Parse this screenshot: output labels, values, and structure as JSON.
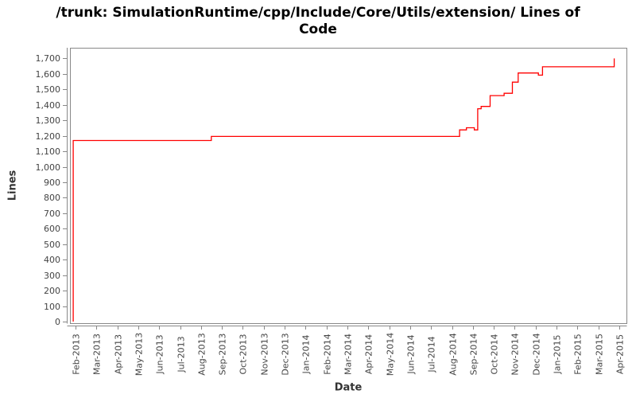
{
  "title": "/trunk: SimulationRuntime/cpp/Include/Core/Utils/extension/ Lines of Code",
  "title_lines": [
    "/trunk: SimulationRuntime/cpp/Include/Core/Utils/extension/ Lines of",
    "Code"
  ],
  "colors": {
    "series": "#ff0000",
    "axis": "#888888",
    "frame": "#888888",
    "tick_label": "#444444",
    "title": "#000000",
    "background": "#ffffff"
  },
  "chart_data": {
    "type": "line",
    "line_style": "step-after",
    "title": "/trunk: SimulationRuntime/cpp/Include/Core/Utils/extension/ Lines of Code",
    "xlabel": "Date",
    "ylabel": "Lines",
    "ylim": [
      0,
      1700
    ],
    "y_tick_interval": 100,
    "y_tick_labels": [
      "0",
      "100",
      "200",
      "300",
      "400",
      "500",
      "600",
      "700",
      "800",
      "900",
      "1,000",
      "1,100",
      "1,200",
      "1,300",
      "1,400",
      "1,500",
      "1,600",
      "1,700"
    ],
    "x_tick_labels": [
      "Feb-2013",
      "Mar-2013",
      "Apr-2013",
      "May-2013",
      "Jun-2013",
      "Jul-2013",
      "Aug-2013",
      "Sep-2013",
      "Oct-2013",
      "Nov-2013",
      "Dec-2013",
      "Jan-2014",
      "Feb-2014",
      "Mar-2014",
      "Apr-2014",
      "May-2014",
      "Jun-2014",
      "Jul-2014",
      "Aug-2014",
      "Sep-2014",
      "Oct-2014",
      "Nov-2014",
      "Dec-2014",
      "Jan-2015",
      "Feb-2015",
      "Mar-2015",
      "Apr-2015"
    ],
    "grid": false,
    "legend": "none",
    "points": [
      {
        "date": "2013-01-28",
        "lines": 0
      },
      {
        "date": "2013-01-28",
        "lines": 1170
      },
      {
        "date": "2013-08-16",
        "lines": 1196
      },
      {
        "date": "2014-08-12",
        "lines": 1238
      },
      {
        "date": "2014-08-22",
        "lines": 1252
      },
      {
        "date": "2014-09-03",
        "lines": 1238
      },
      {
        "date": "2014-09-08",
        "lines": 1375
      },
      {
        "date": "2014-09-13",
        "lines": 1390
      },
      {
        "date": "2014-09-26",
        "lines": 1460
      },
      {
        "date": "2014-10-16",
        "lines": 1475
      },
      {
        "date": "2014-10-28",
        "lines": 1547
      },
      {
        "date": "2014-11-06",
        "lines": 1606
      },
      {
        "date": "2014-12-05",
        "lines": 1592
      },
      {
        "date": "2014-12-11",
        "lines": 1646
      },
      {
        "date": "2015-03-24",
        "lines": 1700
      }
    ]
  }
}
